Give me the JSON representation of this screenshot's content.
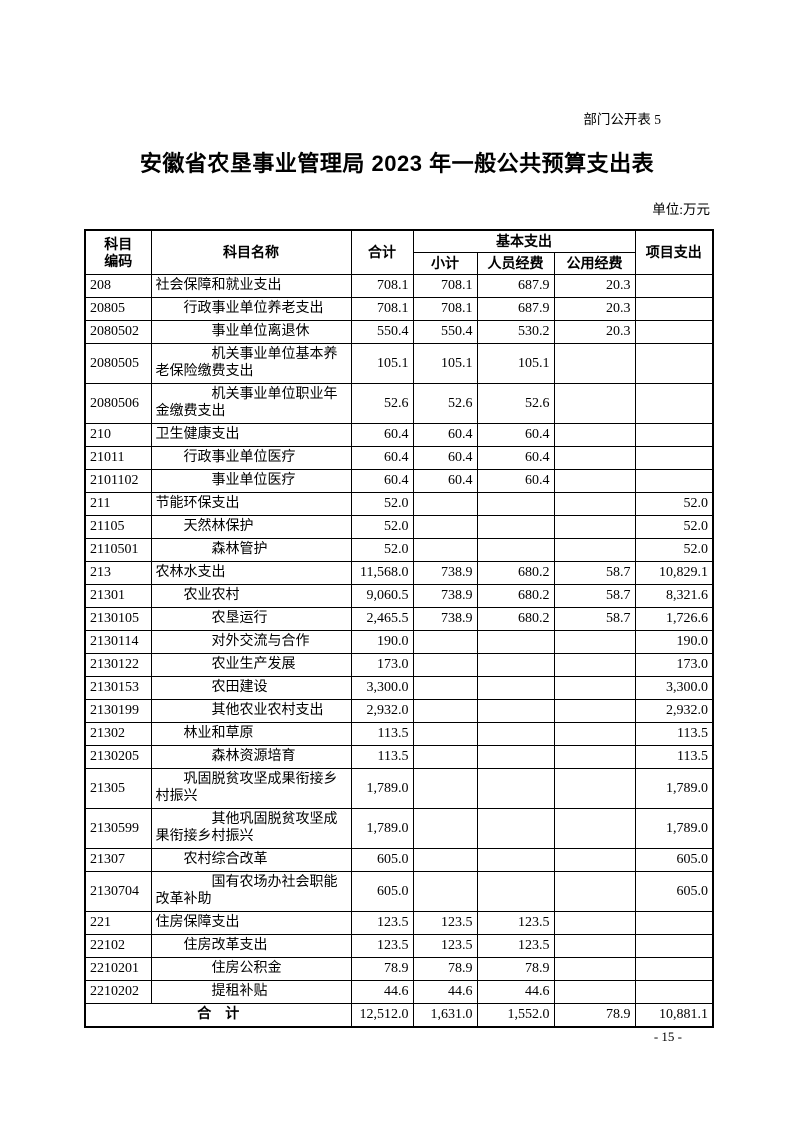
{
  "page": {
    "doc_label": "部门公开表 5",
    "title": "安徽省农垦事业管理局 2023 年一般公共预算支出表",
    "unit_label": "单位:万元",
    "page_number": "- 15 -"
  },
  "table": {
    "header": {
      "code_line1": "科目",
      "code_line2": "编码",
      "name": "科目名称",
      "total": "合计",
      "basic": "基本支出",
      "subtotal": "小计",
      "personnel": "人员经费",
      "public": "公用经费",
      "project": "项目支出"
    },
    "rows": [
      {
        "code": "208",
        "indent": 0,
        "name": "社会保障和就业支出",
        "total": "708.1",
        "subtotal": "708.1",
        "personnel": "687.9",
        "public": "20.3",
        "project": ""
      },
      {
        "code": "20805",
        "indent": 2,
        "name": "行政事业单位养老支出",
        "total": "708.1",
        "subtotal": "708.1",
        "personnel": "687.9",
        "public": "20.3",
        "project": ""
      },
      {
        "code": "2080502",
        "indent": 4,
        "name": "事业单位离退休",
        "total": "550.4",
        "subtotal": "550.4",
        "personnel": "530.2",
        "public": "20.3",
        "project": ""
      },
      {
        "code": "2080505",
        "indent": 4,
        "name": "机关事业单位基本养老保险缴费支出",
        "total": "105.1",
        "subtotal": "105.1",
        "personnel": "105.1",
        "public": "",
        "project": ""
      },
      {
        "code": "2080506",
        "indent": 4,
        "name": "机关事业单位职业年金缴费支出",
        "total": "52.6",
        "subtotal": "52.6",
        "personnel": "52.6",
        "public": "",
        "project": ""
      },
      {
        "code": "210",
        "indent": 0,
        "name": "卫生健康支出",
        "total": "60.4",
        "subtotal": "60.4",
        "personnel": "60.4",
        "public": "",
        "project": ""
      },
      {
        "code": "21011",
        "indent": 2,
        "name": "行政事业单位医疗",
        "total": "60.4",
        "subtotal": "60.4",
        "personnel": "60.4",
        "public": "",
        "project": ""
      },
      {
        "code": "2101102",
        "indent": 4,
        "name": "事业单位医疗",
        "total": "60.4",
        "subtotal": "60.4",
        "personnel": "60.4",
        "public": "",
        "project": ""
      },
      {
        "code": "211",
        "indent": 0,
        "name": "节能环保支出",
        "total": "52.0",
        "subtotal": "",
        "personnel": "",
        "public": "",
        "project": "52.0"
      },
      {
        "code": "21105",
        "indent": 2,
        "name": "天然林保护",
        "total": "52.0",
        "subtotal": "",
        "personnel": "",
        "public": "",
        "project": "52.0"
      },
      {
        "code": "2110501",
        "indent": 4,
        "name": "森林管护",
        "total": "52.0",
        "subtotal": "",
        "personnel": "",
        "public": "",
        "project": "52.0"
      },
      {
        "code": "213",
        "indent": 0,
        "name": "农林水支出",
        "total": "11,568.0",
        "subtotal": "738.9",
        "personnel": "680.2",
        "public": "58.7",
        "project": "10,829.1"
      },
      {
        "code": "21301",
        "indent": 2,
        "name": "农业农村",
        "total": "9,060.5",
        "subtotal": "738.9",
        "personnel": "680.2",
        "public": "58.7",
        "project": "8,321.6"
      },
      {
        "code": "2130105",
        "indent": 4,
        "name": "农垦运行",
        "total": "2,465.5",
        "subtotal": "738.9",
        "personnel": "680.2",
        "public": "58.7",
        "project": "1,726.6"
      },
      {
        "code": "2130114",
        "indent": 4,
        "name": "对外交流与合作",
        "total": "190.0",
        "subtotal": "",
        "personnel": "",
        "public": "",
        "project": "190.0"
      },
      {
        "code": "2130122",
        "indent": 4,
        "name": "农业生产发展",
        "total": "173.0",
        "subtotal": "",
        "personnel": "",
        "public": "",
        "project": "173.0"
      },
      {
        "code": "2130153",
        "indent": 4,
        "name": "农田建设",
        "total": "3,300.0",
        "subtotal": "",
        "personnel": "",
        "public": "",
        "project": "3,300.0"
      },
      {
        "code": "2130199",
        "indent": 4,
        "name": "其他农业农村支出",
        "total": "2,932.0",
        "subtotal": "",
        "personnel": "",
        "public": "",
        "project": "2,932.0"
      },
      {
        "code": "21302",
        "indent": 2,
        "name": "林业和草原",
        "total": "113.5",
        "subtotal": "",
        "personnel": "",
        "public": "",
        "project": "113.5"
      },
      {
        "code": "2130205",
        "indent": 4,
        "name": "森林资源培育",
        "total": "113.5",
        "subtotal": "",
        "personnel": "",
        "public": "",
        "project": "113.5"
      },
      {
        "code": "21305",
        "indent": 2,
        "name": "巩固脱贫攻坚成果衔接乡村振兴",
        "total": "1,789.0",
        "subtotal": "",
        "personnel": "",
        "public": "",
        "project": "1,789.0"
      },
      {
        "code": "2130599",
        "indent": 4,
        "name": "其他巩固脱贫攻坚成果衔接乡村振兴",
        "total": "1,789.0",
        "subtotal": "",
        "personnel": "",
        "public": "",
        "project": "1,789.0"
      },
      {
        "code": "21307",
        "indent": 2,
        "name": "农村综合改革",
        "total": "605.0",
        "subtotal": "",
        "personnel": "",
        "public": "",
        "project": "605.0"
      },
      {
        "code": "2130704",
        "indent": 4,
        "name": "国有农场办社会职能改革补助",
        "total": "605.0",
        "subtotal": "",
        "personnel": "",
        "public": "",
        "project": "605.0"
      },
      {
        "code": "221",
        "indent": 0,
        "name": "住房保障支出",
        "total": "123.5",
        "subtotal": "123.5",
        "personnel": "123.5",
        "public": "",
        "project": ""
      },
      {
        "code": "22102",
        "indent": 2,
        "name": "住房改革支出",
        "total": "123.5",
        "subtotal": "123.5",
        "personnel": "123.5",
        "public": "",
        "project": ""
      },
      {
        "code": "2210201",
        "indent": 4,
        "name": "住房公积金",
        "total": "78.9",
        "subtotal": "78.9",
        "personnel": "78.9",
        "public": "",
        "project": ""
      },
      {
        "code": "2210202",
        "indent": 4,
        "name": "提租补贴",
        "total": "44.6",
        "subtotal": "44.6",
        "personnel": "44.6",
        "public": "",
        "project": ""
      }
    ],
    "total_row": {
      "label": "合　计",
      "total": "12,512.0",
      "subtotal": "1,631.0",
      "personnel": "1,552.0",
      "public": "78.9",
      "project": "10,881.1"
    }
  }
}
